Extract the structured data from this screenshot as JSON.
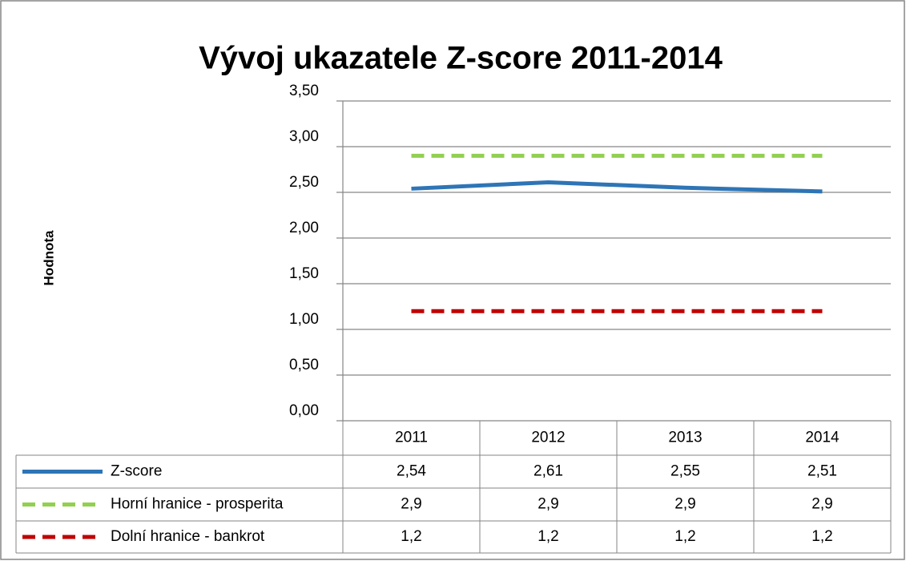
{
  "chart_data": {
    "type": "line",
    "title": "Vývoj ukazatele Z-score 2011-2014",
    "y_label": "Hodnota",
    "categories": [
      "2011",
      "2012",
      "2013",
      "2014"
    ],
    "series": [
      {
        "name": "Z-score",
        "color": "#2e75b6",
        "line_style": "solid",
        "values": [
          2.54,
          2.61,
          2.55,
          2.51
        ],
        "value_labels": [
          "2,54",
          "2,61",
          "2,55",
          "2,51"
        ]
      },
      {
        "name": "Horní hranice - prosperita",
        "color": "#92d050",
        "line_style": "dashed",
        "values": [
          2.9,
          2.9,
          2.9,
          2.9
        ],
        "value_labels": [
          "2,9",
          "2,9",
          "2,9",
          "2,9"
        ]
      },
      {
        "name": "Dolní hranice - bankrot",
        "color": "#c00000",
        "line_style": "dashed",
        "values": [
          1.2,
          1.2,
          1.2,
          1.2
        ],
        "value_labels": [
          "1,2",
          "1,2",
          "1,2",
          "1,2"
        ]
      }
    ],
    "ylim": [
      0,
      3.5
    ],
    "yticks": [
      {
        "value": 0,
        "label": "0,00"
      },
      {
        "value": 0.5,
        "label": "0,50"
      },
      {
        "value": 1,
        "label": "1,00"
      },
      {
        "value": 1.5,
        "label": "1,50"
      },
      {
        "value": 2,
        "label": "2,00"
      },
      {
        "value": 2.5,
        "label": "2,50"
      },
      {
        "value": 3,
        "label": "3,00"
      },
      {
        "value": 3.5,
        "label": "3,50"
      }
    ],
    "grid": true
  }
}
